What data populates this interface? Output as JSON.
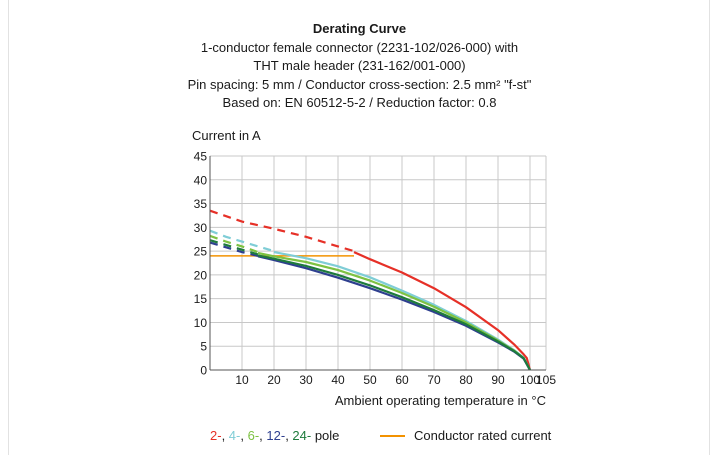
{
  "chart_data": {
    "type": "line",
    "title": "Derating Curve",
    "subtitle_lines": [
      "1-conductor female connector (2231-102/026-000) with",
      "THT male header (231-162/001-000)",
      "Pin spacing: 5 mm / Conductor cross-section: 2.5 mm² \"f-st\"",
      "Based on: EN 60512-5-2 / Reduction factor: 0.8"
    ],
    "ylabel": "Current in A",
    "xlabel": "Ambient operating temperature in °C",
    "xlim": [
      0,
      105
    ],
    "ylim": [
      0,
      45
    ],
    "x_ticks": [
      10,
      20,
      30,
      40,
      50,
      60,
      70,
      80,
      90,
      100,
      105
    ],
    "y_ticks": [
      0,
      5,
      10,
      15,
      20,
      25,
      30,
      35,
      40,
      45
    ],
    "grid": true,
    "series": [
      {
        "name": "2-",
        "color": "#e63027",
        "dashed": {
          "x": [
            0,
            10,
            20,
            30,
            40,
            45
          ],
          "y": [
            33.5,
            31.2,
            29.7,
            28.0,
            26.0,
            25.0
          ]
        },
        "solid": {
          "x": [
            45,
            50,
            60,
            70,
            80,
            90,
            95,
            98,
            99,
            100
          ],
          "y": [
            24.8,
            23.3,
            20.5,
            17.2,
            13.2,
            8.4,
            5.4,
            3.3,
            2.5,
            0
          ]
        }
      },
      {
        "name": "4-",
        "color": "#7fcdd6",
        "dashed": {
          "x": [
            0,
            5,
            10,
            15,
            20
          ],
          "y": [
            29.3,
            28.0,
            27.0,
            26.0,
            25.0
          ]
        },
        "solid": {
          "x": [
            20,
            30,
            40,
            50,
            60,
            70,
            80,
            90,
            95,
            98,
            100
          ],
          "y": [
            24.8,
            23.5,
            21.8,
            19.5,
            16.7,
            13.7,
            10.3,
            6.4,
            4.2,
            2.6,
            0
          ]
        }
      },
      {
        "name": "6-",
        "color": "#7dc242",
        "dashed": {
          "x": [
            0,
            5,
            10,
            15
          ],
          "y": [
            28.2,
            27.0,
            26.0,
            24.8
          ]
        },
        "solid": {
          "x": [
            15,
            20,
            30,
            40,
            50,
            60,
            70,
            80,
            90,
            95,
            98,
            100
          ],
          "y": [
            24.6,
            23.9,
            22.7,
            21.0,
            18.8,
            16.2,
            13.3,
            10.0,
            6.2,
            4.1,
            2.5,
            0
          ]
        }
      },
      {
        "name": "12-",
        "color": "#2e3f8f",
        "dashed": {
          "x": [
            0,
            5,
            10,
            15
          ],
          "y": [
            26.8,
            25.8,
            24.8,
            24.0
          ]
        },
        "solid": {
          "x": [
            15,
            20,
            30,
            40,
            50,
            60,
            70,
            80,
            90,
            95,
            98,
            100
          ],
          "y": [
            23.9,
            23.1,
            21.4,
            19.4,
            17.2,
            14.8,
            12.2,
            9.3,
            5.8,
            3.9,
            2.4,
            0
          ]
        }
      },
      {
        "name": "24-",
        "color": "#1e7b3c",
        "dashed": {
          "x": [
            0,
            5,
            10,
            15
          ],
          "y": [
            27.3,
            26.3,
            25.3,
            24.3
          ]
        },
        "solid": {
          "x": [
            15,
            20,
            30,
            40,
            50,
            60,
            70,
            80,
            90,
            95,
            98,
            100
          ],
          "y": [
            24.1,
            23.4,
            21.9,
            20.0,
            17.8,
            15.3,
            12.6,
            9.6,
            6.0,
            4.0,
            2.5,
            0
          ]
        }
      }
    ],
    "rated_current": {
      "name": "Conductor rated current",
      "color": "#f39200",
      "x": [
        0,
        45
      ],
      "y": [
        24,
        24
      ]
    },
    "legend": {
      "placement": "bottom",
      "pole_items": [
        {
          "text": "2-",
          "color": "#e63027"
        },
        {
          "text": "4-",
          "color": "#7fcdd6"
        },
        {
          "text": "6-",
          "color": "#7dc242"
        },
        {
          "text": "12-",
          "color": "#2e3f8f"
        },
        {
          "text": "24-",
          "color": "#1e7b3c"
        }
      ],
      "pole_suffix": "pole",
      "rated_label": "Conductor rated current",
      "rated_color": "#f39200"
    }
  }
}
